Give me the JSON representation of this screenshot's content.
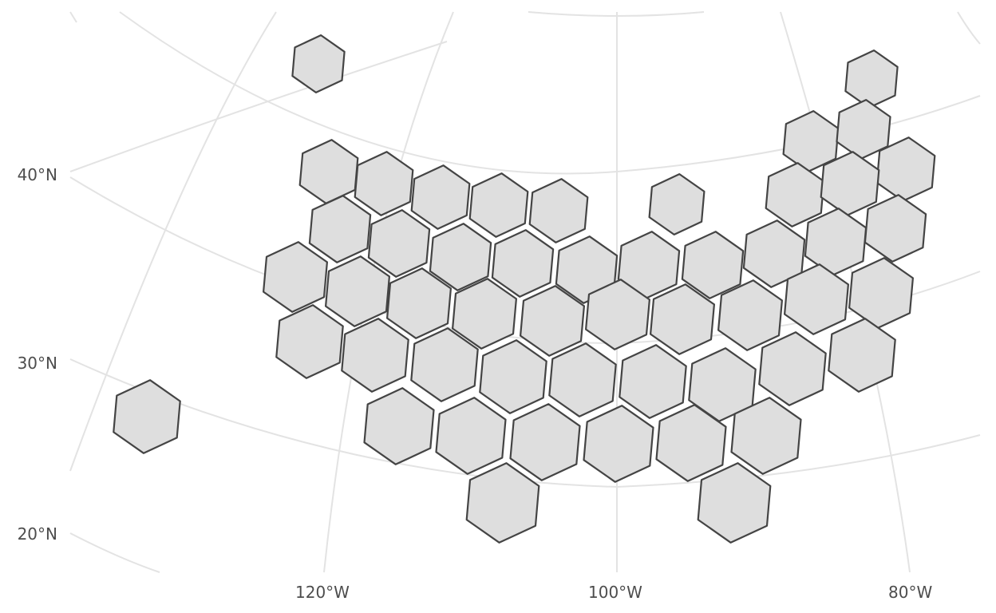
{
  "chart_data": {
    "type": "other",
    "projection": "conic",
    "grid": true,
    "x_ticks": [
      "120°W",
      "100°W",
      "80°W"
    ],
    "y_ticks": [
      "40°N",
      "30°N",
      "20°N"
    ],
    "cell_shape": "hexagon",
    "cell_count": 51,
    "colors": {
      "hex_fill": "#dedede",
      "hex_stroke": "#444444",
      "graticule": "#e3e3e3",
      "label": "#4d4d4d"
    }
  }
}
